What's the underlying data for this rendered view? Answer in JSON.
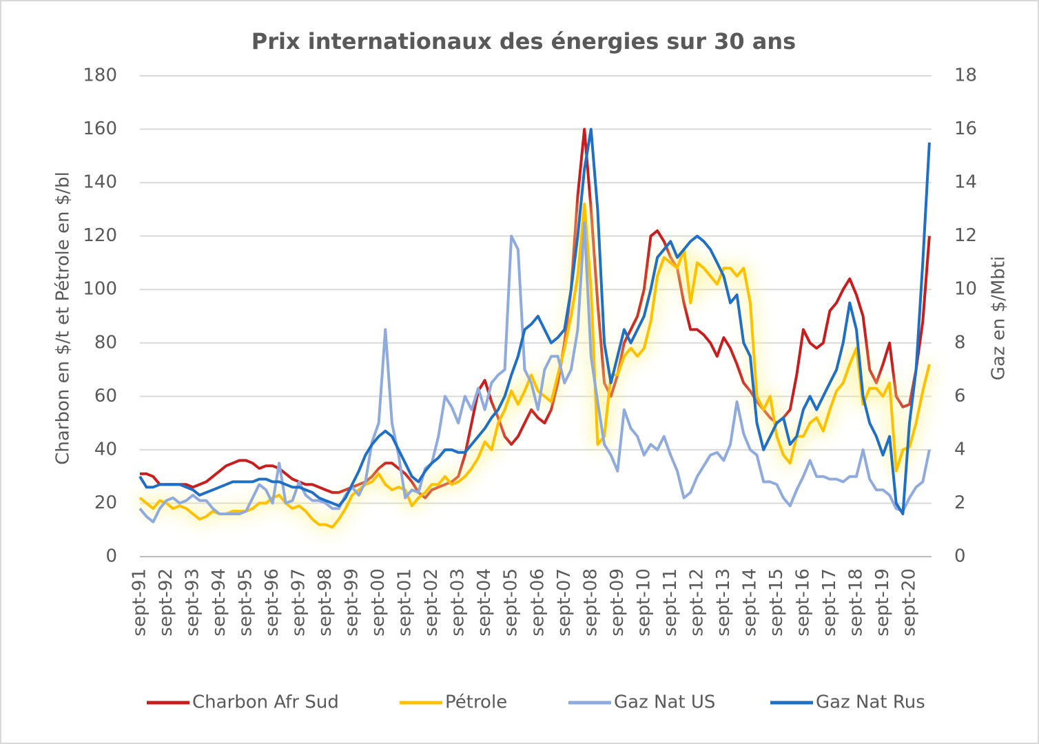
{
  "chart_data": {
    "type": "line",
    "title": "Prix internationaux des énergies sur 30 ans",
    "ylabel": "Charbon en $/t et Pétrole en $/bl",
    "y2label": "Gaz en $/Mbti",
    "ylim": [
      0,
      180
    ],
    "yticks": [
      0,
      20,
      40,
      60,
      80,
      100,
      120,
      140,
      160,
      180
    ],
    "y2lim": [
      0,
      18
    ],
    "y2ticks": [
      0,
      2,
      4,
      6,
      8,
      10,
      12,
      14,
      16,
      18
    ],
    "grid": true,
    "legend": "bottom",
    "categories": [
      "sept-91",
      null,
      null,
      null,
      "sept-92",
      null,
      null,
      null,
      "sept-93",
      null,
      null,
      null,
      "sept-94",
      null,
      null,
      null,
      "sept-95",
      null,
      null,
      null,
      "sept-96",
      null,
      null,
      null,
      "sept-97",
      null,
      null,
      null,
      "sept-98",
      null,
      null,
      null,
      "sept-99",
      null,
      null,
      null,
      "sept-00",
      null,
      null,
      null,
      "sept-01",
      null,
      null,
      null,
      "sept-02",
      null,
      null,
      null,
      "sept-03",
      null,
      null,
      null,
      "sept-04",
      null,
      null,
      null,
      "sept-05",
      null,
      null,
      null,
      "sept-06",
      null,
      null,
      null,
      "sept-07",
      null,
      null,
      null,
      "sept-08",
      null,
      null,
      null,
      "sept-09",
      null,
      null,
      null,
      "sept-10",
      null,
      null,
      null,
      "sept-11",
      null,
      null,
      null,
      "sept-12",
      null,
      null,
      null,
      "sept-13",
      null,
      null,
      null,
      "sept-14",
      null,
      null,
      null,
      "sept-15",
      null,
      null,
      null,
      "sept-16",
      null,
      null,
      null,
      "sept-17",
      null,
      null,
      null,
      "sept-18",
      null,
      null,
      null,
      "sept-19",
      null,
      null,
      null,
      "sept-20",
      null,
      null,
      null
    ],
    "series": [
      {
        "name": "Charbon Afr Sud",
        "color": "#c81d1d",
        "values": [
          31,
          31,
          30,
          27,
          27,
          27,
          27,
          27,
          26,
          27,
          28,
          30,
          32,
          34,
          35,
          36,
          36,
          35,
          33,
          34,
          34,
          33,
          31,
          29,
          28,
          27,
          27,
          26,
          25,
          24,
          24,
          25,
          26,
          27,
          28,
          30,
          33,
          35,
          35,
          33,
          31,
          28,
          24,
          22,
          25,
          26,
          27,
          28,
          30,
          38,
          50,
          62,
          66,
          58,
          52,
          45,
          42,
          45,
          50,
          55,
          52,
          50,
          55,
          65,
          80,
          100,
          135,
          160,
          130,
          95,
          65,
          60,
          68,
          80,
          85,
          90,
          100,
          120,
          122,
          118,
          112,
          108,
          95,
          85,
          85,
          83,
          80,
          75,
          82,
          78,
          72,
          65,
          62,
          58,
          55,
          52,
          50,
          52,
          55,
          68,
          85,
          80,
          78,
          80,
          92,
          95,
          100,
          104,
          98,
          90,
          70,
          65,
          72,
          80,
          60,
          56,
          57,
          70,
          88,
          120
        ]
      },
      {
        "name": "Pétrole",
        "color": "#ffc000",
        "values": [
          22,
          20,
          18,
          21,
          20,
          18,
          19,
          18,
          16,
          14,
          15,
          17,
          16,
          16,
          17,
          17,
          17,
          18,
          20,
          20,
          22,
          23,
          20,
          18,
          19,
          17,
          14,
          12,
          12,
          11,
          14,
          18,
          23,
          25,
          27,
          28,
          31,
          27,
          25,
          26,
          25,
          19,
          22,
          24,
          27,
          27,
          30,
          27,
          28,
          30,
          33,
          37,
          43,
          40,
          50,
          55,
          62,
          57,
          62,
          68,
          62,
          60,
          58,
          68,
          78,
          90,
          105,
          132,
          100,
          42,
          45,
          68,
          68,
          75,
          78,
          75,
          78,
          88,
          105,
          112,
          110,
          108,
          115,
          95,
          110,
          108,
          105,
          102,
          108,
          108,
          105,
          108,
          95,
          60,
          55,
          60,
          45,
          38,
          35,
          45,
          45,
          50,
          52,
          47,
          55,
          62,
          65,
          72,
          78,
          57,
          63,
          63,
          60,
          65,
          32,
          40,
          41,
          50,
          62,
          72
        ]
      },
      {
        "name": "Gaz Nat US",
        "color": "#8faadc",
        "axis": "y2",
        "values": [
          1.8,
          1.5,
          1.3,
          1.8,
          2.1,
          2.2,
          2.0,
          2.1,
          2.3,
          2.1,
          2.1,
          1.8,
          1.6,
          1.6,
          1.6,
          1.6,
          1.7,
          2.2,
          2.7,
          2.5,
          2.0,
          3.5,
          2.0,
          2.1,
          2.8,
          2.3,
          2.1,
          2.1,
          2.0,
          1.8,
          1.8,
          2.3,
          2.6,
          2.3,
          2.8,
          4.3,
          5.0,
          8.5,
          5.0,
          3.8,
          2.2,
          2.5,
          2.4,
          3.3,
          3.5,
          4.5,
          6.0,
          5.6,
          5.0,
          6.0,
          5.5,
          6.3,
          5.5,
          6.5,
          6.8,
          7.0,
          12.0,
          11.5,
          7.0,
          6.5,
          5.5,
          7.0,
          7.5,
          7.5,
          6.5,
          7.0,
          8.5,
          12.5,
          7.5,
          5.8,
          4.2,
          3.8,
          3.2,
          5.5,
          4.8,
          4.5,
          3.8,
          4.2,
          4.0,
          4.5,
          3.8,
          3.2,
          2.2,
          2.4,
          3.0,
          3.4,
          3.8,
          3.9,
          3.6,
          4.2,
          5.8,
          4.6,
          4.0,
          3.8,
          2.8,
          2.8,
          2.7,
          2.2,
          1.9,
          2.5,
          3.0,
          3.6,
          3.0,
          3.0,
          2.9,
          2.9,
          2.8,
          3.0,
          3.0,
          4.0,
          2.9,
          2.5,
          2.5,
          2.3,
          1.8,
          1.7,
          2.2,
          2.6,
          2.8,
          4.0
        ]
      },
      {
        "name": "Gaz Nat Rus",
        "color": "#1f6fc4",
        "axis": "y2",
        "values": [
          3.0,
          2.6,
          2.6,
          2.7,
          2.7,
          2.7,
          2.7,
          2.6,
          2.5,
          2.3,
          2.4,
          2.5,
          2.6,
          2.7,
          2.8,
          2.8,
          2.8,
          2.8,
          2.9,
          2.9,
          2.8,
          2.8,
          2.7,
          2.6,
          2.6,
          2.5,
          2.4,
          2.2,
          2.1,
          2.0,
          1.9,
          2.2,
          2.7,
          3.2,
          3.8,
          4.2,
          4.5,
          4.7,
          4.5,
          4.0,
          3.5,
          3.0,
          2.8,
          3.2,
          3.5,
          3.7,
          4.0,
          4.0,
          3.9,
          3.9,
          4.2,
          4.5,
          4.8,
          5.2,
          5.5,
          6.0,
          6.8,
          7.5,
          8.5,
          8.7,
          9.0,
          8.5,
          8.0,
          8.2,
          8.5,
          10.0,
          12.0,
          14.5,
          16.0,
          13.0,
          8.0,
          6.5,
          7.5,
          8.5,
          8.0,
          8.5,
          9.0,
          10.0,
          11.2,
          11.5,
          11.8,
          11.2,
          11.5,
          11.8,
          12.0,
          11.8,
          11.5,
          11.0,
          10.5,
          9.5,
          9.8,
          8.0,
          7.5,
          5.0,
          4.0,
          4.5,
          5.0,
          5.2,
          4.2,
          4.5,
          5.5,
          6.0,
          5.5,
          6.0,
          6.5,
          7.0,
          8.0,
          9.5,
          8.5,
          6.0,
          5.0,
          4.5,
          3.8,
          4.5,
          2.0,
          1.6,
          5.0,
          7.0,
          11.0,
          15.5
        ]
      }
    ]
  }
}
